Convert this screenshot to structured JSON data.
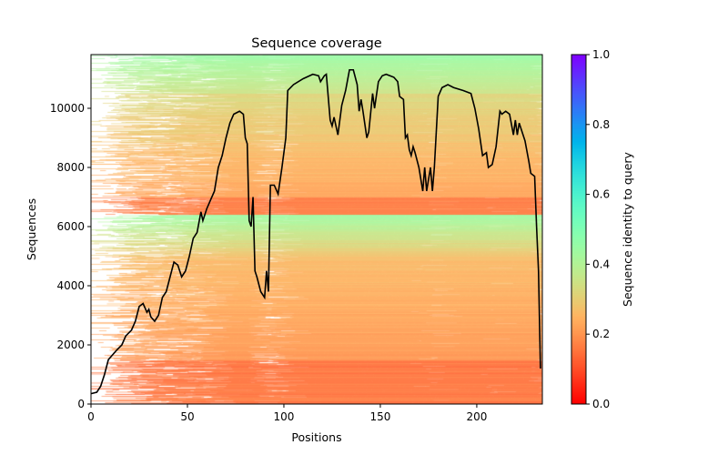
{
  "chart_data": {
    "type": "heatmap",
    "title": "Sequence coverage",
    "xlabel": "Positions",
    "ylabel": "Sequences",
    "xlim": [
      0,
      234
    ],
    "ylim": [
      0,
      11815
    ],
    "xticks": [
      0,
      50,
      100,
      150,
      200
    ],
    "yticks": [
      0,
      2000,
      4000,
      6000,
      8000,
      10000
    ],
    "grid": false,
    "colorbar": {
      "label": "Sequence identity to query",
      "colormap": "rainbow_r",
      "range": [
        0,
        1
      ],
      "ticks": [
        "0.0",
        "0.2",
        "0.4",
        "0.6",
        "0.8",
        "1.0"
      ]
    },
    "coverage_line": {
      "color": "#000000",
      "x": [
        0,
        3,
        5,
        7,
        9,
        11,
        13,
        16,
        18,
        21,
        23,
        25,
        27,
        29,
        30,
        31,
        33,
        35,
        37,
        39,
        41,
        43,
        45,
        47,
        49,
        51,
        53,
        55,
        57,
        58,
        60,
        62,
        64,
        66,
        68,
        70,
        72,
        74,
        77,
        79,
        80,
        81,
        82,
        83,
        84,
        85,
        86,
        88,
        90,
        91,
        92,
        93,
        95,
        97,
        99,
        101,
        102,
        105,
        110,
        115,
        118,
        119,
        121,
        122,
        124,
        125,
        126,
        128,
        130,
        132,
        134,
        136,
        138,
        139,
        140,
        141,
        143,
        144,
        146,
        147,
        149,
        151,
        153,
        155,
        157,
        159,
        160,
        162,
        163,
        164,
        165,
        166,
        167,
        168,
        170,
        172,
        173,
        174,
        176,
        177,
        178,
        180,
        182,
        185,
        188,
        193,
        197,
        199,
        201,
        203,
        205,
        206,
        208,
        210,
        212,
        213,
        215,
        217,
        219,
        220,
        221,
        222,
        223,
        225,
        227,
        228,
        230,
        231,
        232,
        233
      ],
      "y": [
        350,
        400,
        600,
        1000,
        1500,
        1650,
        1800,
        2000,
        2300,
        2500,
        2800,
        3300,
        3400,
        3100,
        3200,
        2950,
        2800,
        3000,
        3600,
        3800,
        4300,
        4800,
        4700,
        4300,
        4500,
        5000,
        5600,
        5800,
        6500,
        6200,
        6600,
        6900,
        7200,
        8000,
        8400,
        9000,
        9500,
        9800,
        9900,
        9800,
        9000,
        8800,
        6200,
        6000,
        7000,
        4500,
        4300,
        3800,
        3600,
        4500,
        3800,
        7400,
        7400,
        7100,
        8000,
        9000,
        10600,
        10800,
        11000,
        11150,
        11100,
        10900,
        11100,
        11150,
        9600,
        9400,
        9700,
        9100,
        10100,
        10600,
        11300,
        11300,
        10800,
        9900,
        10300,
        9900,
        9000,
        9200,
        10500,
        10000,
        10900,
        11100,
        11150,
        11100,
        11050,
        10900,
        10400,
        10300,
        9000,
        9100,
        8600,
        8400,
        8700,
        8500,
        8000,
        7200,
        8000,
        7200,
        8000,
        7200,
        8000,
        10400,
        10700,
        10800,
        10700,
        10600,
        10500,
        10000,
        9300,
        8400,
        8500,
        8000,
        8100,
        8700,
        9900,
        9800,
        9900,
        9800,
        9100,
        9600,
        9100,
        9500,
        9300,
        8900,
        8200,
        7800,
        7700,
        6000,
        4500,
        1200
      ]
    }
  }
}
